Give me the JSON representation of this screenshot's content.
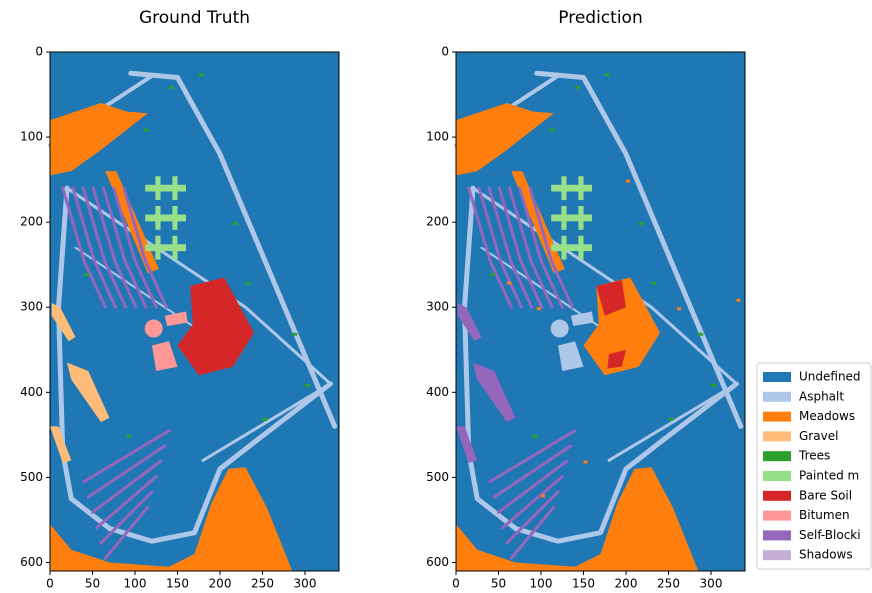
{
  "chart_data": [
    {
      "type": "image",
      "title": "Ground Truth",
      "xlim": [
        0,
        340
      ],
      "ylim": [
        610,
        0
      ],
      "xticks": [
        0,
        50,
        100,
        150,
        200,
        250,
        300
      ],
      "yticks": [
        0,
        100,
        200,
        300,
        400,
        500,
        600
      ]
    },
    {
      "type": "image",
      "title": "Prediction",
      "xlim": [
        0,
        340
      ],
      "ylim": [
        610,
        0
      ],
      "xticks": [
        0,
        50,
        100,
        150,
        200,
        250,
        300
      ],
      "yticks": [
        0,
        100,
        200,
        300,
        400,
        500,
        600
      ],
      "legend": [
        {
          "name": "Undefined",
          "color": "#1f77b4"
        },
        {
          "name": "Asphalt",
          "color": "#aec7e8"
        },
        {
          "name": "Meadows",
          "color": "#ff7f0e"
        },
        {
          "name": "Gravel",
          "color": "#ffbb78"
        },
        {
          "name": "Trees",
          "color": "#2ca02c"
        },
        {
          "name": "Painted m",
          "color": "#98df8a"
        },
        {
          "name": "Bare Soil",
          "color": "#d62728"
        },
        {
          "name": "Bitumen",
          "color": "#ff9896"
        },
        {
          "name": "Self-Blocki",
          "color": "#9467bd"
        },
        {
          "name": "Shadows",
          "color": "#c5b0d5"
        }
      ]
    }
  ]
}
